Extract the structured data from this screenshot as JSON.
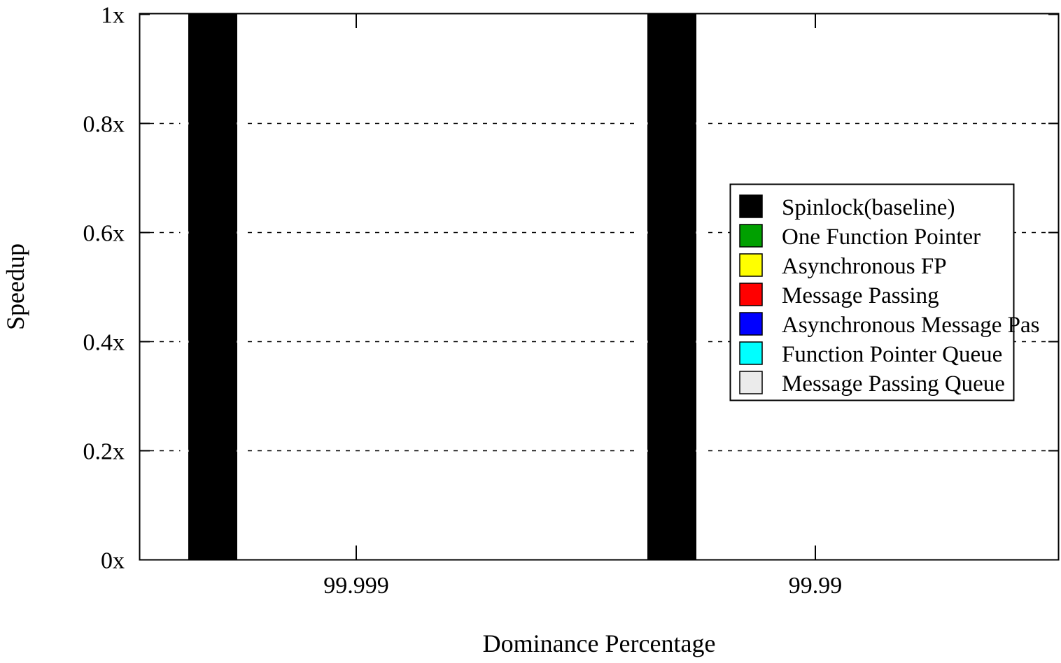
{
  "chart_data": {
    "type": "bar",
    "xlabel": "Dominance Percentage",
    "ylabel": "Speedup",
    "ylim": [
      0,
      1
    ],
    "yticks": [
      {
        "value": 0,
        "label": "0x"
      },
      {
        "value": 0.2,
        "label": "0.2x"
      },
      {
        "value": 0.4,
        "label": "0.4x"
      },
      {
        "value": 0.6,
        "label": "0.6x"
      },
      {
        "value": 0.8,
        "label": "0.8x"
      },
      {
        "value": 1,
        "label": "1x"
      }
    ],
    "categories": [
      "99.999",
      "99.99"
    ],
    "grid": "horizontal dashed",
    "legend_position": "right",
    "series": [
      {
        "name": "Spinlock(baseline)",
        "color": "#000000",
        "values": [
          1,
          1
        ]
      },
      {
        "name": "One Function Pointer",
        "color": "#00a000",
        "values": [
          0,
          0
        ]
      },
      {
        "name": "Asynchronous FP",
        "color": "#ffff00",
        "values": [
          0,
          0
        ]
      },
      {
        "name": "Message Passing",
        "color": "#ff0000",
        "values": [
          0,
          0
        ]
      },
      {
        "name": "Asynchronous Message Pas",
        "color": "#0000ff",
        "values": [
          0,
          0
        ]
      },
      {
        "name": "Function Pointer Queue",
        "color": "#00ffff",
        "values": [
          0,
          0
        ]
      },
      {
        "name": "Message Passing Queue",
        "color": "#ebebeb",
        "values": [
          0,
          0
        ]
      }
    ]
  }
}
